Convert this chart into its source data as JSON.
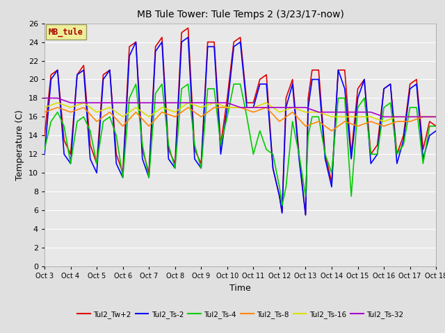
{
  "title": "MB Tule Tower: Tule Temps 2 (3/23/17-now)",
  "xlabel": "Time",
  "ylabel": "Temperature (C)",
  "ylim": [
    0,
    26
  ],
  "yticks": [
    0,
    2,
    4,
    6,
    8,
    10,
    12,
    14,
    16,
    18,
    20,
    22,
    24,
    26
  ],
  "xlim": [
    0,
    15
  ],
  "xtick_labels": [
    "Oct 3",
    "Oct 4",
    "Oct 5",
    "Oct 6",
    "Oct 7",
    "Oct 8",
    "Oct 9",
    "Oct 10",
    "Oct 11",
    "Oct 12",
    "Oct 13",
    "Oct 14",
    "Oct 15",
    "Oct 16",
    "Oct 17",
    "Oct 18"
  ],
  "xtick_positions": [
    0,
    1,
    2,
    3,
    4,
    5,
    6,
    7,
    8,
    9,
    10,
    11,
    12,
    13,
    14,
    15
  ],
  "fig_bg_color": "#e0e0e0",
  "plot_bg_color": "#e8e8e8",
  "grid_color": "#ffffff",
  "series": {
    "Tul2_Tw+2": {
      "color": "#dd0000",
      "lw": 1.2,
      "data_x": [
        0.0,
        0.25,
        0.5,
        0.75,
        1.0,
        1.25,
        1.5,
        1.75,
        2.0,
        2.25,
        2.5,
        2.75,
        3.0,
        3.25,
        3.5,
        3.75,
        4.0,
        4.25,
        4.5,
        4.75,
        5.0,
        5.25,
        5.5,
        5.75,
        6.0,
        6.25,
        6.5,
        6.75,
        7.0,
        7.25,
        7.5,
        7.75,
        8.0,
        8.25,
        8.5,
        8.75,
        9.0,
        9.1,
        9.25,
        9.5,
        9.75,
        10.0,
        10.1,
        10.25,
        10.5,
        10.75,
        11.0,
        11.25,
        11.5,
        11.75,
        12.0,
        12.25,
        12.5,
        12.75,
        13.0,
        13.25,
        13.5,
        13.75,
        14.0,
        14.25,
        14.5,
        14.75,
        15.0
      ],
      "data_y": [
        14.0,
        20.5,
        21.0,
        13.5,
        12.0,
        20.5,
        21.5,
        13.0,
        11.0,
        20.5,
        21.0,
        12.0,
        10.0,
        23.5,
        24.0,
        12.5,
        10.0,
        23.5,
        24.5,
        12.5,
        11.0,
        25.0,
        25.5,
        12.5,
        11.0,
        24.0,
        24.0,
        13.0,
        18.0,
        24.0,
        24.5,
        17.5,
        17.5,
        20.0,
        20.5,
        10.5,
        7.5,
        5.8,
        18.0,
        20.0,
        12.0,
        5.5,
        18.0,
        21.0,
        21.0,
        12.0,
        9.0,
        21.0,
        21.0,
        12.0,
        19.0,
        20.0,
        12.0,
        13.0,
        19.0,
        19.5,
        12.0,
        14.0,
        19.5,
        20.0,
        12.5,
        15.5,
        15.0
      ]
    },
    "Tul2_Ts-2": {
      "color": "#0000ff",
      "lw": 1.2,
      "data_x": [
        0.0,
        0.25,
        0.5,
        0.75,
        1.0,
        1.25,
        1.5,
        1.75,
        2.0,
        2.25,
        2.5,
        2.75,
        3.0,
        3.25,
        3.5,
        3.75,
        4.0,
        4.25,
        4.5,
        4.75,
        5.0,
        5.25,
        5.5,
        5.75,
        6.0,
        6.25,
        6.5,
        6.75,
        7.0,
        7.25,
        7.5,
        7.75,
        8.0,
        8.25,
        8.5,
        8.75,
        9.0,
        9.1,
        9.25,
        9.5,
        9.75,
        10.0,
        10.1,
        10.25,
        10.5,
        10.75,
        11.0,
        11.25,
        11.5,
        11.75,
        12.0,
        12.25,
        12.5,
        12.75,
        13.0,
        13.25,
        13.5,
        13.75,
        14.0,
        14.25,
        14.5,
        14.75,
        15.0
      ],
      "data_y": [
        12.0,
        20.0,
        21.0,
        12.0,
        11.0,
        20.5,
        21.0,
        11.5,
        10.0,
        20.0,
        21.0,
        11.0,
        9.5,
        22.5,
        24.0,
        11.5,
        9.5,
        23.0,
        24.0,
        11.5,
        10.5,
        24.0,
        24.5,
        11.5,
        10.5,
        23.5,
        23.5,
        12.0,
        17.0,
        23.5,
        24.0,
        17.0,
        17.0,
        19.5,
        19.5,
        10.5,
        7.5,
        5.7,
        17.0,
        19.5,
        11.5,
        5.5,
        17.0,
        20.0,
        20.0,
        11.5,
        8.5,
        21.0,
        19.0,
        11.5,
        18.0,
        20.0,
        11.0,
        12.0,
        19.0,
        19.5,
        11.0,
        13.5,
        19.0,
        19.5,
        11.5,
        14.0,
        14.5
      ]
    },
    "Tul2_Ts-4": {
      "color": "#00cc00",
      "lw": 1.2,
      "data_x": [
        0.0,
        0.25,
        0.5,
        0.75,
        1.0,
        1.25,
        1.5,
        1.75,
        2.0,
        2.25,
        2.5,
        2.75,
        3.0,
        3.25,
        3.5,
        3.75,
        4.0,
        4.25,
        4.5,
        4.75,
        5.0,
        5.25,
        5.5,
        5.75,
        6.0,
        6.25,
        6.5,
        6.75,
        7.0,
        7.25,
        7.5,
        7.75,
        8.0,
        8.25,
        8.5,
        8.75,
        9.0,
        9.1,
        9.25,
        9.5,
        9.75,
        10.0,
        10.1,
        10.25,
        10.5,
        10.75,
        11.0,
        11.25,
        11.5,
        11.75,
        12.0,
        12.25,
        12.5,
        12.75,
        13.0,
        13.25,
        13.5,
        13.75,
        14.0,
        14.25,
        14.5,
        14.75,
        15.0
      ],
      "data_y": [
        12.5,
        15.5,
        16.5,
        15.0,
        11.0,
        15.5,
        16.0,
        14.5,
        11.0,
        15.5,
        16.0,
        14.0,
        9.5,
        18.0,
        19.5,
        13.0,
        9.5,
        18.5,
        19.5,
        13.0,
        10.5,
        19.0,
        19.5,
        13.0,
        10.5,
        19.0,
        19.0,
        13.0,
        16.0,
        19.5,
        19.5,
        16.0,
        12.0,
        14.5,
        12.5,
        12.0,
        8.5,
        6.5,
        8.5,
        15.5,
        12.0,
        7.5,
        14.0,
        16.0,
        16.0,
        12.0,
        10.0,
        18.0,
        18.0,
        7.5,
        17.0,
        18.0,
        12.0,
        12.0,
        17.0,
        17.5,
        12.0,
        13.0,
        17.0,
        17.0,
        11.0,
        15.0,
        15.0
      ]
    },
    "Tul2_Ts-8": {
      "color": "#ff8800",
      "lw": 1.2,
      "data_x": [
        0.0,
        0.5,
        1.0,
        1.5,
        2.0,
        2.5,
        3.0,
        3.5,
        4.0,
        4.5,
        5.0,
        5.5,
        6.0,
        6.5,
        7.0,
        7.5,
        8.0,
        8.5,
        9.0,
        9.5,
        10.0,
        10.5,
        11.0,
        11.5,
        12.0,
        12.5,
        13.0,
        13.5,
        14.0,
        14.5,
        15.0
      ],
      "data_y": [
        16.5,
        17.0,
        16.5,
        17.0,
        15.5,
        16.5,
        15.0,
        16.5,
        15.0,
        16.5,
        16.0,
        17.0,
        16.0,
        17.0,
        17.0,
        17.0,
        16.5,
        17.0,
        15.5,
        16.5,
        15.0,
        15.5,
        14.5,
        15.5,
        15.0,
        15.5,
        15.0,
        15.5,
        15.5,
        16.0,
        16.0
      ]
    },
    "Tul2_Ts-16": {
      "color": "#dddd00",
      "lw": 1.2,
      "data_x": [
        0.0,
        0.5,
        1.0,
        1.5,
        2.0,
        2.5,
        3.0,
        3.5,
        4.0,
        4.5,
        5.0,
        5.5,
        6.0,
        6.5,
        7.0,
        7.5,
        8.0,
        8.5,
        9.0,
        9.5,
        10.0,
        10.5,
        11.0,
        11.5,
        12.0,
        12.5,
        13.0,
        13.5,
        14.0,
        14.5,
        15.0
      ],
      "data_y": [
        17.0,
        17.5,
        17.0,
        17.5,
        16.5,
        17.0,
        16.0,
        17.0,
        16.0,
        17.0,
        16.5,
        17.5,
        17.0,
        17.5,
        17.0,
        17.0,
        17.0,
        17.5,
        16.5,
        17.0,
        16.5,
        16.5,
        16.0,
        16.0,
        16.0,
        16.0,
        15.5,
        16.0,
        16.0,
        16.0,
        16.0
      ]
    },
    "Tul2_Ts-32": {
      "color": "#aa00cc",
      "lw": 1.2,
      "data_x": [
        0.0,
        0.5,
        1.0,
        1.5,
        2.0,
        2.5,
        3.0,
        3.5,
        4.0,
        4.5,
        5.0,
        5.5,
        6.0,
        6.5,
        7.0,
        7.5,
        8.0,
        8.5,
        9.0,
        9.5,
        10.0,
        10.5,
        11.0,
        11.5,
        12.0,
        12.5,
        13.0,
        13.5,
        14.0,
        14.5,
        15.0
      ],
      "data_y": [
        18.0,
        18.0,
        17.5,
        17.5,
        17.5,
        17.5,
        17.5,
        17.5,
        17.5,
        17.5,
        17.5,
        17.5,
        17.5,
        17.5,
        17.5,
        17.0,
        17.0,
        17.0,
        17.0,
        17.0,
        17.0,
        16.5,
        16.5,
        16.5,
        16.5,
        16.5,
        16.0,
        16.0,
        16.0,
        16.0,
        16.0
      ]
    }
  },
  "inset_label": "MB_tule",
  "inset_label_color": "#aa0000",
  "inset_box_facecolor": "#eeee99",
  "inset_box_edgecolor": "#999966",
  "legend_entries": [
    "Tul2_Tw+2",
    "Tul2_Ts-2",
    "Tul2_Ts-4",
    "Tul2_Ts-8",
    "Tul2_Ts-16",
    "Tul2_Ts-32"
  ],
  "legend_colors": [
    "#dd0000",
    "#0000ff",
    "#00cc00",
    "#ff8800",
    "#dddd00",
    "#aa00cc"
  ]
}
